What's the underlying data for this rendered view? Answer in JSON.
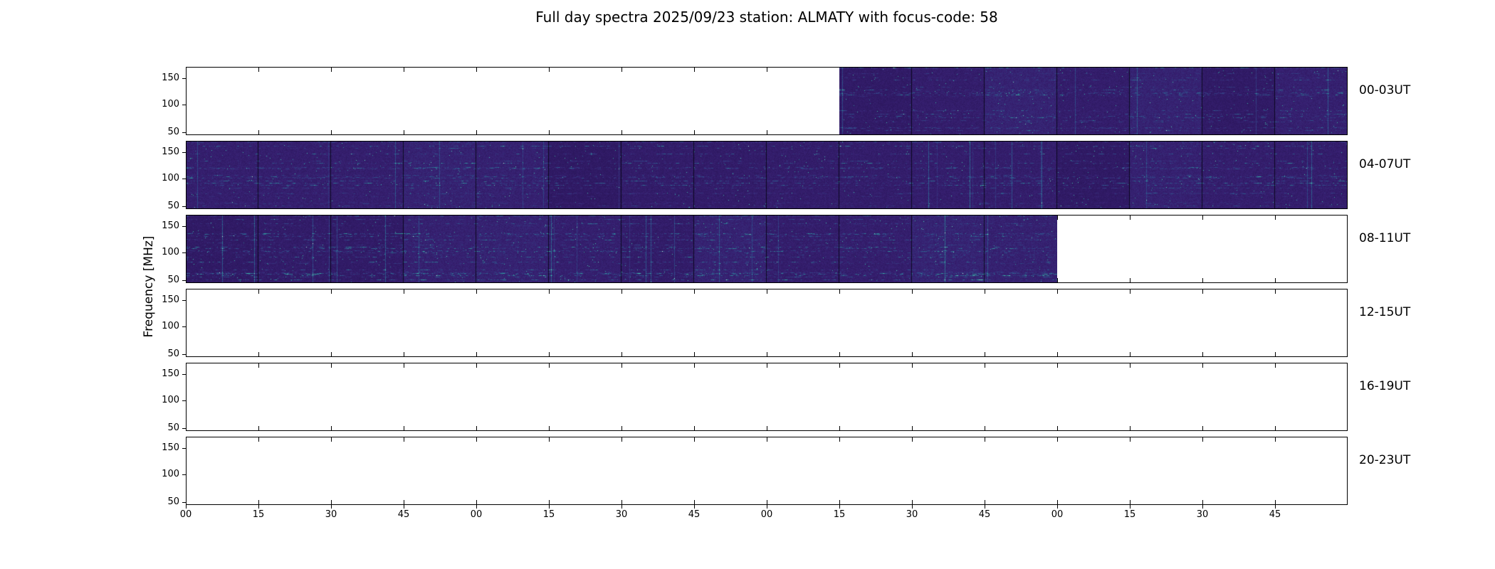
{
  "chart_data": {
    "type": "heatmap",
    "subtype": "radio-spectrogram",
    "title": "Full day spectra 2025/09/23 station: ALMATY with focus-code: 58",
    "ylabel": "Frequency [MHz]",
    "station": "ALMATY",
    "date": "2025/09/23",
    "focus_code": "58",
    "y_tick_labels": [
      "150",
      "100",
      "50"
    ],
    "y_range_mhz": [
      50,
      150
    ],
    "x_tick_labels": [
      "00",
      "15",
      "30",
      "45",
      "00",
      "15",
      "30",
      "45",
      "00",
      "15",
      "30",
      "45",
      "00",
      "15",
      "30",
      "45"
    ],
    "segments_per_row": 16,
    "segment_minutes": 15,
    "rows": [
      {
        "label": "00-03UT",
        "data_start_segment": 9,
        "data_end_segment": 16,
        "data_time_range": [
          "02:15",
          "04:00"
        ],
        "intensity": 1.0
      },
      {
        "label": "04-07UT",
        "data_start_segment": 0,
        "data_end_segment": 16,
        "data_time_range": [
          "04:00",
          "08:00"
        ],
        "intensity": 1.05
      },
      {
        "label": "08-11UT",
        "data_start_segment": 0,
        "data_end_segment": 12,
        "data_time_range": [
          "08:00",
          "11:00"
        ],
        "intensity": 1.25
      },
      {
        "label": "12-15UT",
        "data_start_segment": 0,
        "data_end_segment": 0,
        "data_time_range": null,
        "intensity": 0
      },
      {
        "label": "16-19UT",
        "data_start_segment": 0,
        "data_end_segment": 0,
        "data_time_range": null,
        "intensity": 0
      },
      {
        "label": "20-23UT",
        "data_start_segment": 0,
        "data_end_segment": 0,
        "data_time_range": null,
        "intensity": 0
      }
    ],
    "legend": "none",
    "grid": "off",
    "colors": {
      "background": "#ffffff",
      "frame": "#000000",
      "text": "#000000",
      "colormap": [
        "#200d49",
        "#382173",
        "#2f4f8c",
        "#2e8d96",
        "#45cdb1",
        "#c9f7dc"
      ]
    }
  }
}
